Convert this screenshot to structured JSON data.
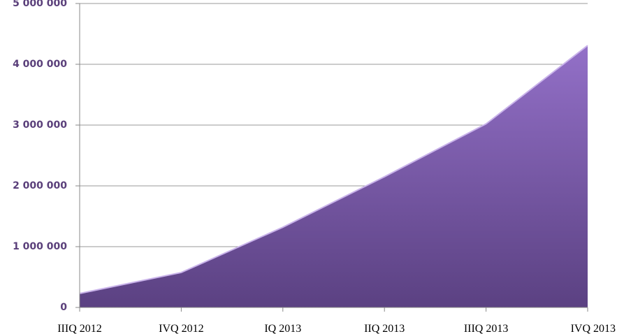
{
  "chart_data": {
    "type": "area",
    "categories": [
      "IIIQ 2012",
      "IVQ 2012",
      "IQ 2013",
      "IIQ 2013",
      "IIIQ 2013",
      "IVQ 2013"
    ],
    "values": [
      230000,
      575000,
      1320000,
      2150000,
      3020000,
      4310000
    ],
    "color": "#7a5aa8",
    "ylim": [
      0,
      5000000
    ],
    "yticks": [
      0,
      {
        "value": 1000000,
        "label": "1 000 000"
      },
      {
        "value": 2000000,
        "label": "2 000 000"
      },
      {
        "value": 3000000,
        "label": "3 000 000"
      },
      {
        "value": 4000000,
        "label": "4 000 000"
      },
      {
        "value": 5000000,
        "label": "5 000 000"
      }
    ],
    "grid": true
  }
}
